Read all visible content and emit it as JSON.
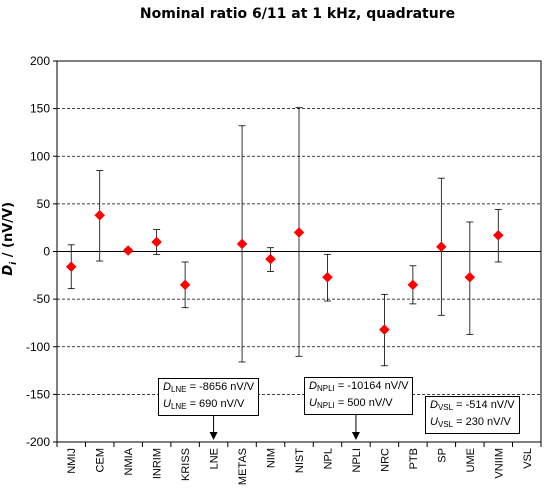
{
  "chart_data": {
    "type": "scatter",
    "title": "Nominal ratio 6/11 at 1 kHz, quadrature",
    "ylabel_symbol": "D",
    "ylabel_sub": "i",
    "ylabel_rest": "/ (nV/V)",
    "ylim": [
      -200,
      200
    ],
    "yticks": [
      200,
      150,
      100,
      50,
      0,
      -50,
      -100,
      -150,
      -200
    ],
    "grid": "horizontal dashed",
    "marker_color": "#ff0000",
    "categories": [
      "NMIJ",
      "CEM",
      "NMIA",
      "INRIM",
      "KRISS",
      "LNE",
      "METAS",
      "NIM",
      "NIST",
      "NPL",
      "NPLI",
      "NRC",
      "PTB",
      "SP",
      "UME",
      "VNIIM",
      "VSL"
    ],
    "points": [
      {
        "x": "NMIJ",
        "y": -16,
        "lo": -39,
        "hi": 7
      },
      {
        "x": "CEM",
        "y": 38,
        "lo": -10,
        "hi": 85
      },
      {
        "x": "NMIA",
        "y": 1,
        "lo": -1,
        "hi": 3
      },
      {
        "x": "INRIM",
        "y": 10,
        "lo": -3,
        "hi": 23
      },
      {
        "x": "KRISS",
        "y": -35,
        "lo": -59,
        "hi": -11
      },
      {
        "x": "METAS",
        "y": 8,
        "lo": -116,
        "hi": 132
      },
      {
        "x": "NIM",
        "y": -8,
        "lo": -21,
        "hi": 4
      },
      {
        "x": "NIST",
        "y": 20,
        "lo": -110,
        "hi": 151
      },
      {
        "x": "NPL",
        "y": -27,
        "lo": -52,
        "hi": -3
      },
      {
        "x": "NRC",
        "y": -82,
        "lo": -120,
        "hi": -45
      },
      {
        "x": "PTB",
        "y": -35,
        "lo": -55,
        "hi": -15
      },
      {
        "x": "SP",
        "y": 5,
        "lo": -67,
        "hi": 77
      },
      {
        "x": "UME",
        "y": -27,
        "lo": -87,
        "hi": 31
      },
      {
        "x": "VNIIM",
        "y": 17,
        "lo": -11,
        "hi": 44
      }
    ],
    "annotations": [
      {
        "lab": "LNE",
        "d_label": "D",
        "d_sub": "LNE",
        "d_value": "= -8656 nV/V",
        "u_label": "U",
        "u_sub": "LNE",
        "u_value": "= 690 nV/V",
        "arrow": "down"
      },
      {
        "lab": "NPLI",
        "d_label": "D",
        "d_sub": "NPLI",
        "d_value": "= -10164 nV/V",
        "u_label": "U",
        "u_sub": "NPLI",
        "u_value": "= 500 nV/V",
        "arrow": "down"
      },
      {
        "lab": "VSL",
        "d_label": "D",
        "d_sub": "VSL",
        "d_value": "= -514 nV/V",
        "u_label": "U",
        "u_sub": "VSL",
        "u_value": "= 230 nV/V",
        "arrow": "none"
      }
    ]
  }
}
